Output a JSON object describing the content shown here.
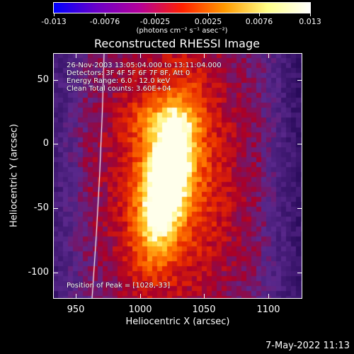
{
  "colorbar": {
    "tick_labels": [
      "-0.013",
      "-0.0076",
      "-0.0025",
      "0.0025",
      "0.0076",
      "0.013"
    ],
    "units": "(photons cm⁻² s⁻¹ asec⁻²)",
    "colors": [
      "#0000ff",
      "#6a00c8",
      "#b4009a",
      "#ff2000",
      "#ff9a00",
      "#ffff88",
      "#ffffff"
    ]
  },
  "title": "Reconstructed RHESSI Image",
  "annotation": {
    "time": "26-Nov-2003 13:05:04.000 to 13:11:04.000",
    "detectors": "Detectors: 3F 4F 5F 6F 7F 8F, Att 0",
    "energy": "Energy Range: 6.0 - 12.0 keV",
    "method": "Clean     Total counts: 3.60E+04",
    "peak": "Position of Peak = [1028,-33]"
  },
  "axes": {
    "ylabel": "Heliocentric Y (arcsec)",
    "xlabel": "Heliocentric X (arcsec)",
    "yticks": [
      "50",
      "0",
      "-50",
      "-100"
    ],
    "xticks": [
      "950",
      "1000",
      "1050",
      "1100"
    ]
  },
  "footer": "7-May-2022 11:13"
}
